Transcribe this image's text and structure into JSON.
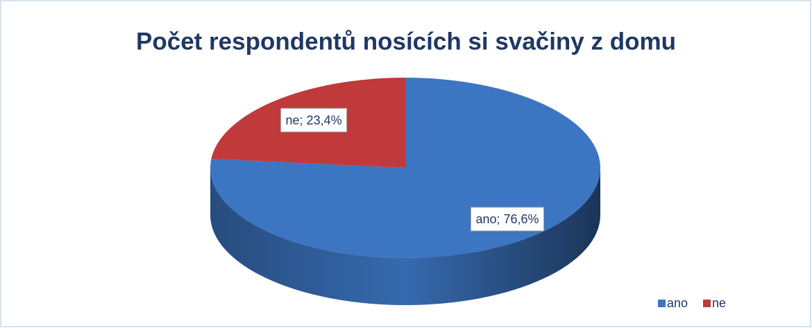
{
  "chart_data": {
    "type": "pie",
    "title": "Počet respondentů nosících si svačiny z domu",
    "categories": [
      "ano",
      "ne"
    ],
    "values": [
      76.6,
      23.4
    ],
    "value_labels": [
      "ano; 76,6%",
      "ne; 23,4%"
    ],
    "colors": [
      "#3c75c2",
      "#c0393b"
    ],
    "legend": "bottom-right"
  }
}
